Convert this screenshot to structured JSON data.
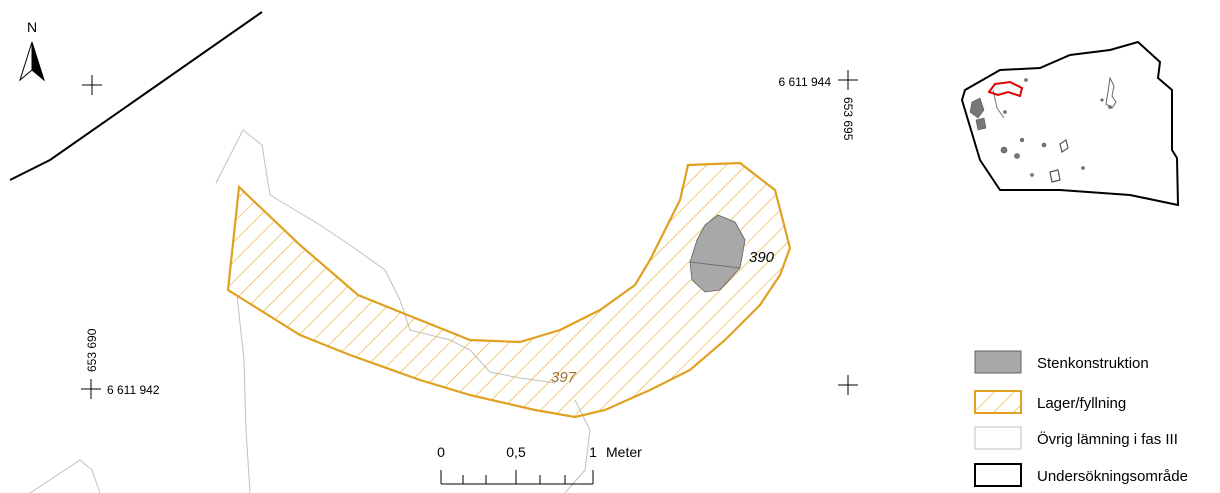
{
  "north_arrow": {
    "label": "N"
  },
  "coordinates": {
    "northing_top": "6 611 944",
    "easting_top": "653 695",
    "northing_bottom": "6 611 942",
    "easting_bottom": "653 690"
  },
  "features": {
    "stone_label": "390",
    "layer_label": "397"
  },
  "scale_bar": {
    "ticks": [
      "0",
      "0,5",
      "1"
    ],
    "unit": "Meter"
  },
  "legend": {
    "items": [
      {
        "label": "Stenkonstruktion",
        "type": "stone"
      },
      {
        "label": "Lager/fyllning",
        "type": "layer"
      },
      {
        "label": "Övrig lämning i fas III",
        "type": "other"
      },
      {
        "label": "Undersökningsområde",
        "type": "area"
      }
    ]
  },
  "colors": {
    "layer_outline": "#e0a020",
    "layer_hatch": "#e8a828",
    "layer_label": "#a07030",
    "stone_fill": "#a8a8a8",
    "other_line": "#c0c0c0",
    "highlight": "#e00000"
  }
}
